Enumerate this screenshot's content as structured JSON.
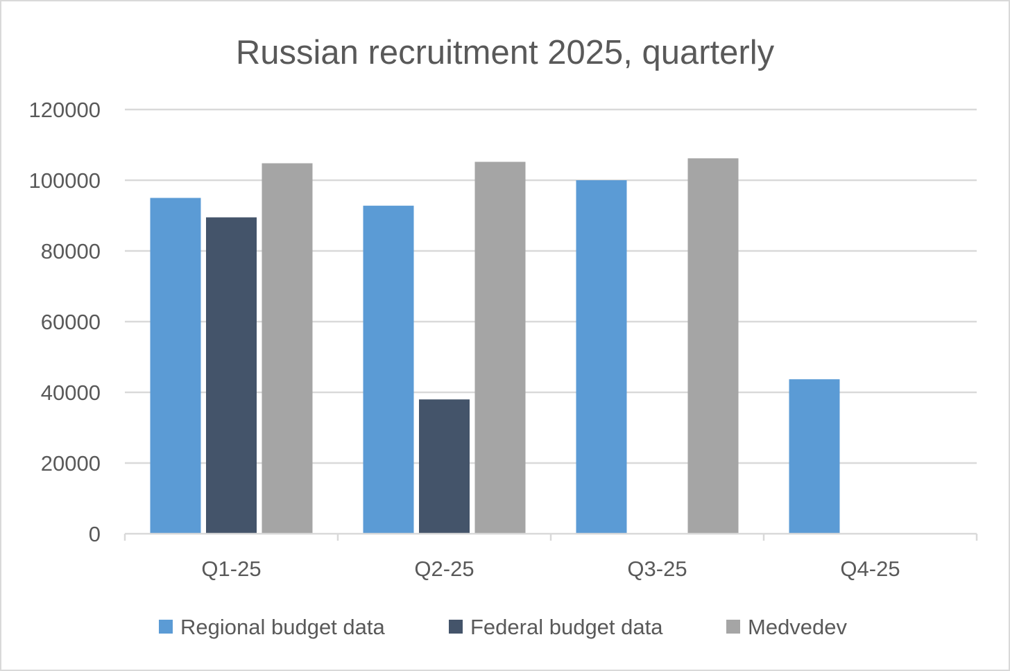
{
  "chart_data": {
    "type": "bar",
    "title": "Russian recruitment 2025, quarterly",
    "xlabel": "",
    "ylabel": "",
    "categories": [
      "Q1-25",
      "Q2-25",
      "Q3-25",
      "Q4-25"
    ],
    "series": [
      {
        "name": "Regional budget data",
        "color": "#5b9bd5",
        "values": [
          95000,
          92800,
          100000,
          43700
        ]
      },
      {
        "name": "Federal budget data",
        "color": "#44546a",
        "values": [
          89500,
          38000,
          null,
          null
        ]
      },
      {
        "name": "Medvedev",
        "color": "#a5a5a5",
        "values": [
          104800,
          105200,
          106200,
          null
        ]
      }
    ],
    "ylim": [
      0,
      120000
    ],
    "yticks": [
      "0",
      "20000",
      "40000",
      "60000",
      "80000",
      "100000",
      "120000"
    ],
    "grid": true,
    "legend_position": "bottom"
  },
  "colors": {
    "gridline": "#d9d9d9",
    "axis": "#d9d9d9",
    "text": "#595959"
  }
}
